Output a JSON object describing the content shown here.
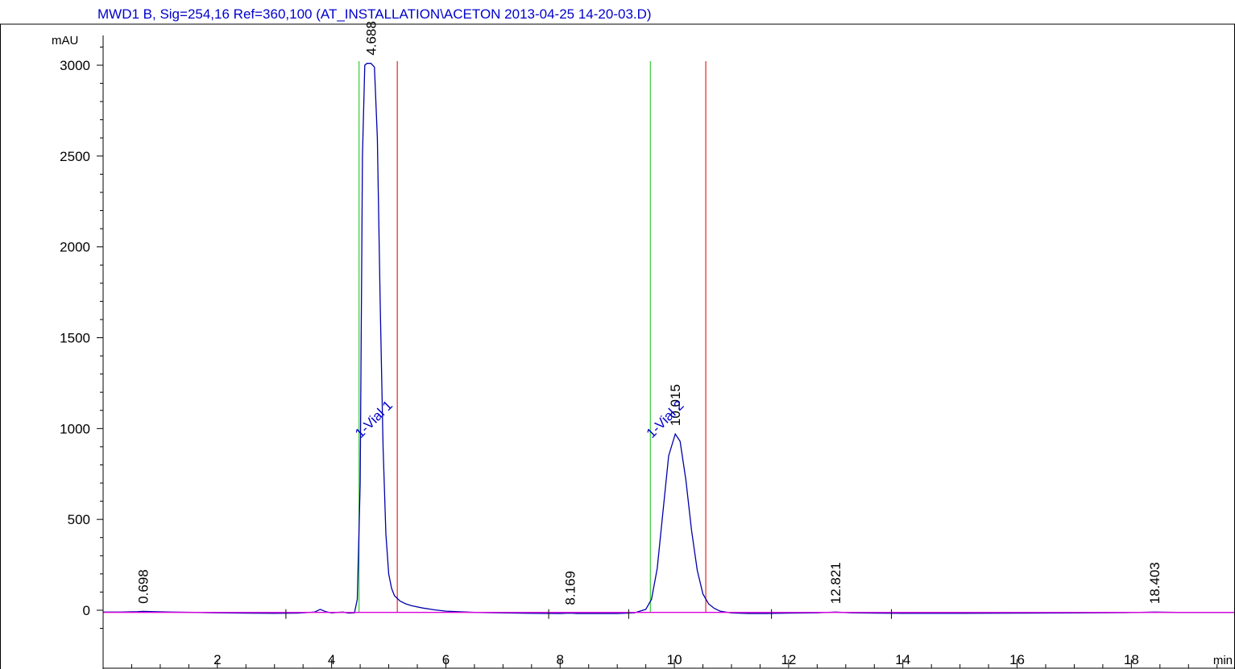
{
  "chart_data": {
    "type": "line",
    "title": "MWD1 B, Sig=254,16 Ref=360,100 (AT_INSTALLATION\\ACETON 2013-04-25 14-20-03.D)",
    "ylabel": "mAU",
    "xlabel": "min",
    "xlim": [
      0,
      19.8
    ],
    "ylim": [
      -150,
      3150
    ],
    "x_ticks": [
      2,
      4,
      6,
      8,
      10,
      12,
      14,
      16,
      18
    ],
    "y_ticks": [
      0,
      500,
      1000,
      1500,
      2000,
      2500,
      3000
    ],
    "x_tick_labels": [
      "2",
      "4",
      "6",
      "8",
      "10",
      "12",
      "14",
      "16",
      "18"
    ],
    "y_tick_labels": [
      "0",
      "500",
      "1000",
      "1500",
      "2000",
      "2500",
      "3000"
    ],
    "series": [
      {
        "color": "#0000aa",
        "x": [
          0.0,
          0.3,
          0.6,
          0.7,
          0.9,
          1.2,
          1.6,
          2.0,
          2.5,
          3.0,
          3.4,
          3.7,
          3.8,
          3.9,
          4.0,
          4.1,
          4.2,
          4.3,
          4.4,
          4.45,
          4.5,
          4.54,
          4.58,
          4.62,
          4.688,
          4.75,
          4.8,
          4.85,
          4.9,
          4.95,
          5.0,
          5.05,
          5.1,
          5.2,
          5.3,
          5.4,
          5.6,
          5.8,
          6.0,
          6.5,
          7.0,
          7.5,
          8.0,
          8.169,
          8.3,
          8.6,
          9.0,
          9.3,
          9.5,
          9.6,
          9.7,
          9.8,
          9.9,
          10.015,
          10.1,
          10.2,
          10.3,
          10.4,
          10.5,
          10.6,
          10.7,
          10.8,
          11.0,
          11.3,
          11.6,
          12.0,
          12.5,
          12.821,
          13.1,
          13.5,
          14.0,
          15.0,
          16.0,
          17.0,
          18.0,
          18.403,
          18.8,
          19.3,
          19.8
        ],
        "y": [
          -10,
          -10,
          -8,
          -6,
          -8,
          -10,
          -12,
          -14,
          -16,
          -17,
          -16,
          -10,
          5,
          -8,
          -15,
          -12,
          -10,
          -16,
          -14,
          60,
          700,
          2500,
          3000,
          3010,
          3010,
          2990,
          2600,
          1700,
          900,
          420,
          200,
          120,
          80,
          50,
          35,
          25,
          12,
          2,
          -5,
          -12,
          -15,
          -17,
          -18,
          -16,
          -18,
          -18,
          -18,
          -14,
          5,
          60,
          230,
          540,
          850,
          970,
          930,
          720,
          440,
          220,
          90,
          35,
          10,
          -5,
          -15,
          -18,
          -18,
          -16,
          -14,
          -10,
          -14,
          -16,
          -17,
          -17,
          -16,
          -15,
          -13,
          -10,
          -12,
          -12,
          -12
        ]
      },
      {
        "color": "#dd00dd",
        "x": [
          0.0,
          19.8
        ],
        "y": [
          -12,
          -12
        ]
      }
    ],
    "peaks": [
      {
        "rt": "0.698",
        "x": 0.698,
        "y": -8
      },
      {
        "rt": "4.688",
        "x": 4.688,
        "y": 3010
      },
      {
        "rt": "8.169",
        "x": 8.169,
        "y": -16
      },
      {
        "rt": "10.015",
        "x": 10.015,
        "y": 970
      },
      {
        "rt": "12.821",
        "x": 12.821,
        "y": -10
      },
      {
        "rt": "18.403",
        "x": 18.403,
        "y": -10
      }
    ],
    "integration_windows": [
      {
        "label": "1-Vial 1",
        "start": 4.48,
        "end": 5.15
      },
      {
        "label": "1-Vial 2",
        "start": 9.58,
        "end": 10.55
      }
    ]
  }
}
